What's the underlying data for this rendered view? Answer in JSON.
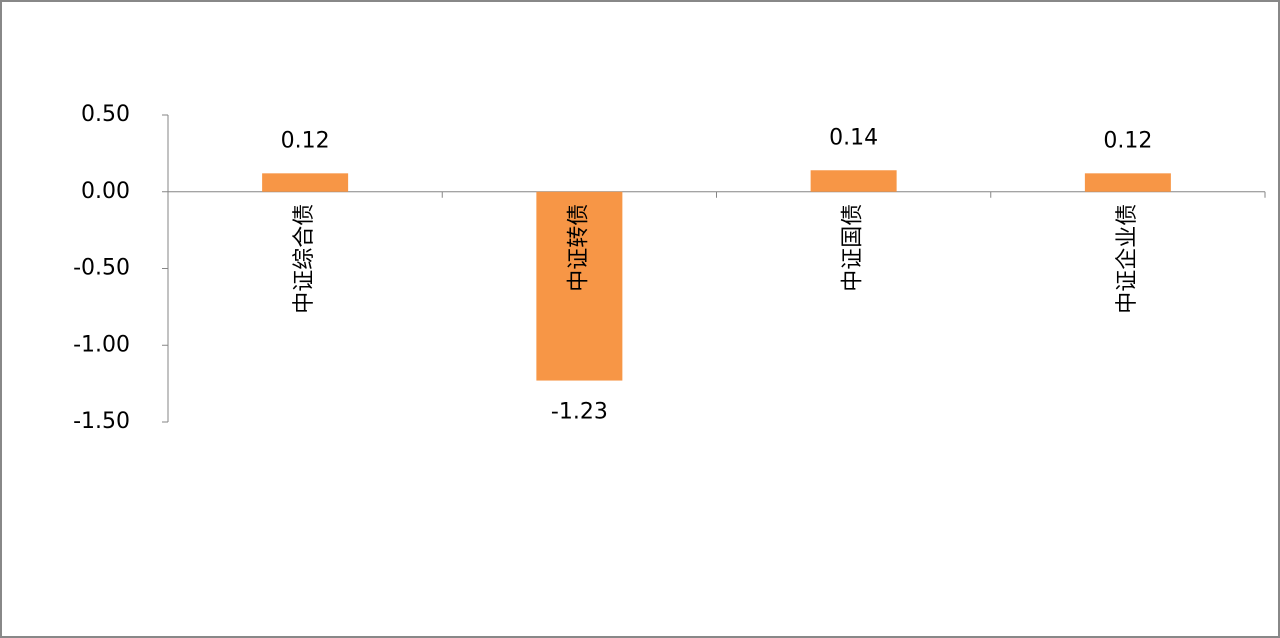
{
  "chart_data": {
    "type": "bar",
    "categories": [
      "中证综合债",
      "中证转债",
      "中证国债",
      "中证企业债"
    ],
    "values": [
      0.12,
      -1.23,
      0.14,
      0.12
    ],
    "color": "#f79646",
    "ylim": [
      -1.5,
      0.5
    ],
    "yticks": [
      {
        "value": -1.5,
        "label": "-1.50"
      },
      {
        "value": -1,
        "label": "-1.00"
      },
      {
        "value": -0.5,
        "label": "-0.50"
      },
      {
        "value": 0,
        "label": "0.00"
      },
      {
        "value": 0.5,
        "label": "0.50"
      }
    ]
  }
}
